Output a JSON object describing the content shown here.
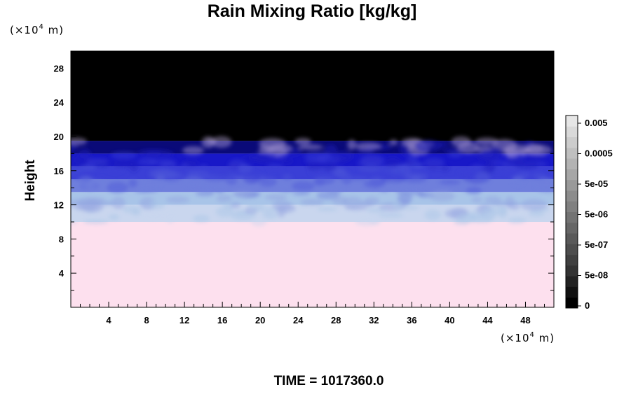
{
  "chart_data": {
    "type": "heatmap",
    "title": "Rain Mixing Ratio [kg/kg]",
    "ylabel": "Height",
    "xlabel": "",
    "x_unit_prefix": "(×10",
    "x_unit_exp": "4",
    "x_unit_suffix": " m)",
    "y_unit_prefix": "(×10",
    "y_unit_exp": "4",
    "y_unit_suffix": " m)",
    "xlim": [
      0,
      51
    ],
    "ylim": [
      0,
      30
    ],
    "x_ticks": [
      4,
      8,
      12,
      16,
      20,
      24,
      28,
      32,
      36,
      40,
      44,
      48
    ],
    "x_tick_labels": [
      "4",
      "8",
      "12",
      "16",
      "20",
      "24",
      "28",
      "32",
      "36",
      "40",
      "44",
      "48"
    ],
    "y_ticks": [
      4,
      8,
      12,
      16,
      20,
      24,
      28
    ],
    "y_tick_labels": [
      "4",
      "8",
      "12",
      "16",
      "20",
      "24",
      "28"
    ],
    "colorbar": {
      "labels": [
        "0.005",
        "0.0005",
        "5e-05",
        "5e-06",
        "5e-07",
        "5e-08",
        "0"
      ],
      "label_levels": [
        0.005,
        0.0005,
        5e-05,
        5e-06,
        5e-07,
        5e-08,
        0
      ],
      "colors": [
        "#000000",
        "#111111",
        "#222222",
        "#333333",
        "#404040",
        "#4d4d4d",
        "#595959",
        "#666666",
        "#737373",
        "#808080",
        "#8c8c8c",
        "#999999",
        "#a6a6a6",
        "#b3b3b3",
        "#bfbfbf",
        "#cccccc",
        "#d9d9d9",
        "#e6e6e6"
      ]
    },
    "bands": [
      {
        "y_from": 0,
        "y_to": 10,
        "color": "#fde0ee"
      },
      {
        "y_from": 10,
        "y_to": 12,
        "color": "#c9d6ee"
      },
      {
        "y_from": 12,
        "y_to": 13.5,
        "color": "#a8c4e8"
      },
      {
        "y_from": 13.5,
        "y_to": 15,
        "color": "#6f7fdc"
      },
      {
        "y_from": 15,
        "y_to": 16.5,
        "color": "#3a3fd6"
      },
      {
        "y_from": 16.5,
        "y_to": 18,
        "color": "#1818c8"
      },
      {
        "y_from": 18,
        "y_to": 19.5,
        "color": "#0a0a78"
      },
      {
        "y_from": 19.5,
        "y_to": 30,
        "color": "#000000"
      }
    ],
    "time_label": "TIME = 1017360.0"
  }
}
